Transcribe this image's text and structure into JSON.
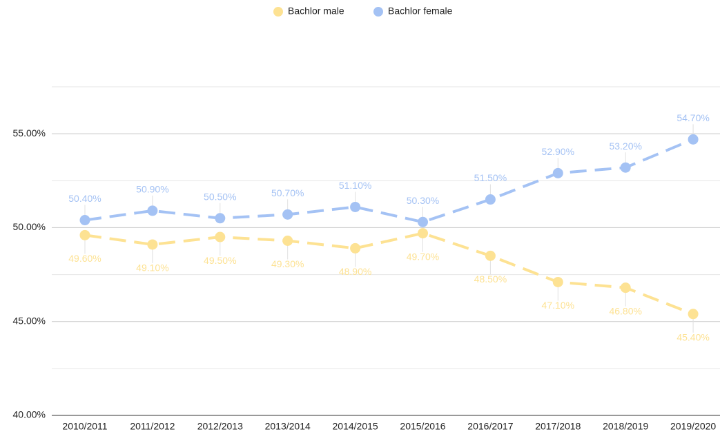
{
  "chart_data": {
    "type": "line",
    "categories": [
      "2010/2011",
      "2011/2012",
      "2012/2013",
      "2013/2014",
      "2014/2015",
      "2015/2016",
      "2016/2017",
      "2017/2018",
      "2018/2019",
      "2019/2020"
    ],
    "series": [
      {
        "name": "Bachlor male",
        "color": "#fde293",
        "values": [
          49.6,
          49.1,
          49.5,
          49.3,
          48.9,
          49.7,
          48.5,
          47.1,
          46.8,
          45.4
        ],
        "value_labels": [
          "49.60%",
          "49.10%",
          "49.50%",
          "49.30%",
          "48.90%",
          "49.70%",
          "48.50%",
          "47.10%",
          "46.80%",
          "45.40%"
        ]
      },
      {
        "name": "Bachlor female",
        "color": "#a4c2f4",
        "values": [
          50.4,
          50.9,
          50.5,
          50.7,
          51.1,
          50.3,
          51.5,
          52.9,
          53.2,
          54.7
        ],
        "value_labels": [
          "50.40%",
          "50.90%",
          "50.50%",
          "50.70%",
          "51.10%",
          "50.30%",
          "51.50%",
          "52.90%",
          "53.20%",
          "54.70%"
        ]
      }
    ],
    "ylim": [
      40,
      57.5
    ],
    "yticks": [
      {
        "value": 40,
        "label": "40.00%"
      },
      {
        "value": 45,
        "label": "45.00%"
      },
      {
        "value": 50,
        "label": "50.00%"
      },
      {
        "value": 55,
        "label": "55.00%"
      }
    ],
    "minor_yticks": [
      42.5,
      47.5,
      52.5,
      57.5
    ],
    "grid": true,
    "legend": "top"
  }
}
